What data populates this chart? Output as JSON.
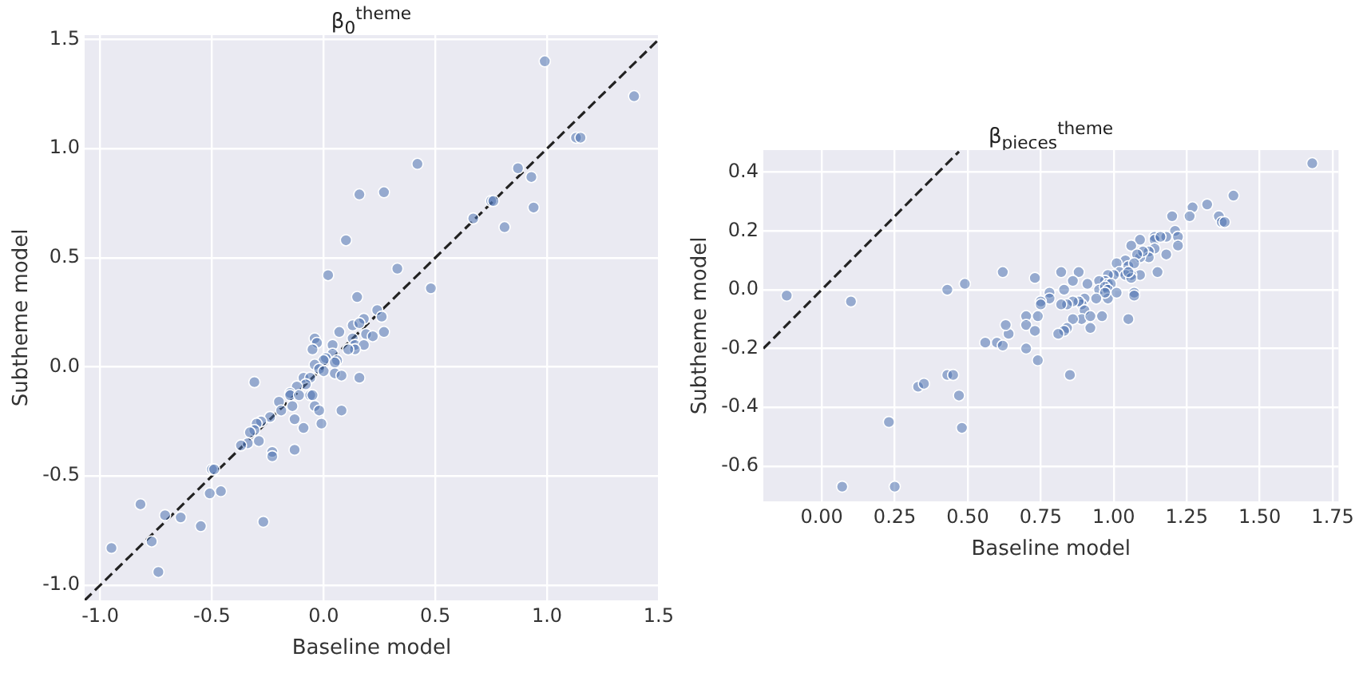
{
  "chart_data": [
    {
      "type": "scatter",
      "title": "β$_{0}$$^{theme}$",
      "xlabel": "Baseline model",
      "ylabel": "Subtheme model",
      "grid": true,
      "marker": "circle",
      "xlim": [
        -1.07,
        1.5
      ],
      "ylim": [
        -1.07,
        1.52
      ],
      "xticks": [
        {
          "value": -1,
          "label": "-1.0"
        },
        {
          "value": -0.5,
          "label": "-0.5"
        },
        {
          "value": 0,
          "label": "0.0"
        },
        0.5,
        {
          "value": 1,
          "label": "1.0"
        },
        1.5
      ],
      "yticks": [
        {
          "value": -1,
          "label": "-1.0"
        },
        {
          "value": -0.5,
          "label": "-0.5"
        },
        {
          "value": 0,
          "label": "0.0"
        },
        0.5,
        {
          "value": 1,
          "label": "1.0"
        },
        1.5
      ],
      "series": [
        {
          "type": "scatter",
          "color": "#4c72b0",
          "x": [
            0.99,
            1.39,
            1.13,
            1.15,
            0.42,
            0.87,
            0.93,
            0.16,
            0.27,
            0.75,
            0.76,
            0.94,
            0.67,
            0.81,
            0.1,
            0.33,
            0.02,
            0.48,
            0.15,
            0.24,
            0.26,
            0.18,
            0.13,
            0.16,
            0.07,
            0.27,
            0.19,
            0.22,
            -0.04,
            -0.03,
            0.13,
            0.04,
            0.14,
            0.18,
            -0.05,
            0.14,
            0.11,
            0.04,
            0.01,
            0.0,
            0.06,
            0.05,
            -0.04,
            -0.02,
            0.0,
            0.05,
            0.08,
            0.16,
            -0.31,
            -0.09,
            -0.06,
            -0.08,
            -0.12,
            -0.15,
            -0.15,
            -0.11,
            -0.06,
            -0.05,
            -0.2,
            -0.19,
            -0.14,
            -0.04,
            -0.02,
            0.08,
            -0.24,
            -0.28,
            -0.3,
            -0.13,
            -0.01,
            -0.09,
            -0.31,
            -0.33,
            -0.29,
            -0.34,
            -0.37,
            -0.23,
            -0.23,
            -0.13,
            -0.5,
            -0.49,
            -0.51,
            -0.46,
            -0.82,
            -0.71,
            -0.64,
            -0.55,
            -0.27,
            -0.77,
            -0.95,
            -0.74
          ],
          "values": [
            1.4,
            1.24,
            1.05,
            1.05,
            0.93,
            0.91,
            0.87,
            0.79,
            0.8,
            0.76,
            0.76,
            0.73,
            0.68,
            0.64,
            0.58,
            0.45,
            0.42,
            0.36,
            0.32,
            0.26,
            0.23,
            0.22,
            0.19,
            0.2,
            0.16,
            0.16,
            0.15,
            0.14,
            0.13,
            0.11,
            0.13,
            0.1,
            0.1,
            0.1,
            0.08,
            0.08,
            0.08,
            0.06,
            0.04,
            0.03,
            0.03,
            0.02,
            0.01,
            -0.01,
            -0.02,
            -0.03,
            -0.04,
            -0.05,
            -0.07,
            -0.05,
            -0.05,
            -0.08,
            -0.09,
            -0.12,
            -0.13,
            -0.13,
            -0.13,
            -0.13,
            -0.16,
            -0.2,
            -0.18,
            -0.18,
            -0.2,
            -0.2,
            -0.23,
            -0.25,
            -0.26,
            -0.24,
            -0.26,
            -0.28,
            -0.29,
            -0.3,
            -0.34,
            -0.35,
            -0.36,
            -0.39,
            -0.41,
            -0.38,
            -0.47,
            -0.47,
            -0.58,
            -0.57,
            -0.63,
            -0.68,
            -0.69,
            -0.73,
            -0.71,
            -0.8,
            -0.83,
            -0.94
          ]
        },
        {
          "type": "line",
          "color": "#222222",
          "line_style": "dashed",
          "marker": "none",
          "x": [
            -1.07,
            1.5
          ],
          "values": [
            -1.07,
            1.5
          ]
        }
      ]
    },
    {
      "type": "scatter",
      "title": "β$_{pieces}$$^{theme}$",
      "xlabel": "Baseline model",
      "ylabel": "Subtheme model",
      "grid": true,
      "marker": "circle",
      "xlim": [
        -0.2,
        1.77
      ],
      "ylim": [
        -0.72,
        0.475
      ],
      "xticks": [
        {
          "value": 0,
          "label": "0.00"
        },
        0.25,
        {
          "value": 0.5,
          "label": "0.50"
        },
        0.75,
        {
          "value": 1,
          "label": "1.00"
        },
        1.25,
        {
          "value": 1.5,
          "label": "1.50"
        },
        1.75
      ],
      "yticks": [
        -0.6,
        -0.4,
        -0.2,
        {
          "value": 0,
          "label": "0.0"
        },
        0.2,
        0.4
      ],
      "series": [
        {
          "type": "scatter",
          "color": "#4c72b0",
          "x": [
            1.68,
            1.41,
            1.32,
            1.27,
            1.26,
            1.2,
            1.36,
            1.37,
            1.38,
            1.21,
            1.22,
            1.18,
            1.22,
            1.14,
            1.14,
            1.16,
            1.09,
            1.06,
            1.18,
            1.14,
            1.12,
            1.12,
            1.09,
            1.1,
            1.08,
            1.04,
            1.05,
            1.07,
            1.09,
            1.06,
            1.01,
            1.02,
            1.0,
            1.15,
            1.04,
            1.06,
            1.05,
            0.98,
            0.97,
            0.95,
            0.98,
            0.99,
            0.95,
            0.97,
            0.98,
            0.98,
            1.01,
            0.97,
            0.94,
            1.07,
            1.07,
            1.05,
            0.91,
            0.88,
            0.82,
            0.86,
            0.83,
            0.78,
            0.78,
            0.75,
            0.75,
            0.73,
            0.62,
            0.9,
            0.89,
            0.88,
            0.86,
            0.84,
            0.82,
            0.9,
            0.89,
            0.92,
            0.92,
            0.96,
            0.86,
            0.84,
            0.83,
            0.81,
            0.7,
            0.74,
            0.7,
            0.73,
            0.64,
            0.63,
            0.74,
            0.7,
            0.56,
            0.6,
            0.62,
            0.43,
            0.49,
            -0.12,
            0.1,
            0.43,
            0.45,
            0.33,
            0.35,
            0.85,
            0.47,
            0.23,
            0.48,
            0.07,
            0.25
          ],
          "values": [
            0.43,
            0.32,
            0.29,
            0.28,
            0.25,
            0.25,
            0.25,
            0.23,
            0.23,
            0.2,
            0.18,
            0.18,
            0.15,
            0.18,
            0.17,
            0.18,
            0.17,
            0.15,
            0.12,
            0.14,
            0.13,
            0.11,
            0.11,
            0.13,
            0.12,
            0.1,
            0.08,
            0.09,
            0.05,
            0.05,
            0.09,
            0.06,
            0.05,
            0.06,
            0.05,
            0.04,
            0.06,
            0.05,
            0.03,
            0.03,
            0.02,
            0.02,
            0.0,
            0.01,
            0.0,
            -0.03,
            -0.01,
            -0.01,
            -0.03,
            -0.01,
            -0.02,
            -0.1,
            0.02,
            0.06,
            0.06,
            0.03,
            0.0,
            -0.01,
            -0.03,
            -0.04,
            -0.05,
            0.04,
            0.06,
            -0.03,
            -0.05,
            -0.04,
            -0.04,
            -0.05,
            -0.05,
            -0.07,
            -0.1,
            -0.09,
            -0.13,
            -0.09,
            -0.1,
            -0.13,
            -0.14,
            -0.15,
            -0.09,
            -0.09,
            -0.12,
            -0.14,
            -0.15,
            -0.12,
            -0.24,
            -0.2,
            -0.18,
            -0.18,
            -0.19,
            0.0,
            0.02,
            -0.02,
            -0.04,
            -0.29,
            -0.29,
            -0.33,
            -0.32,
            -0.29,
            -0.36,
            -0.45,
            -0.47,
            -0.67,
            -0.67
          ]
        },
        {
          "type": "line",
          "color": "#222222",
          "line_style": "dashed",
          "marker": "none",
          "x": [
            -0.2,
            0.47
          ],
          "values": [
            -0.2,
            0.47
          ]
        }
      ]
    }
  ]
}
